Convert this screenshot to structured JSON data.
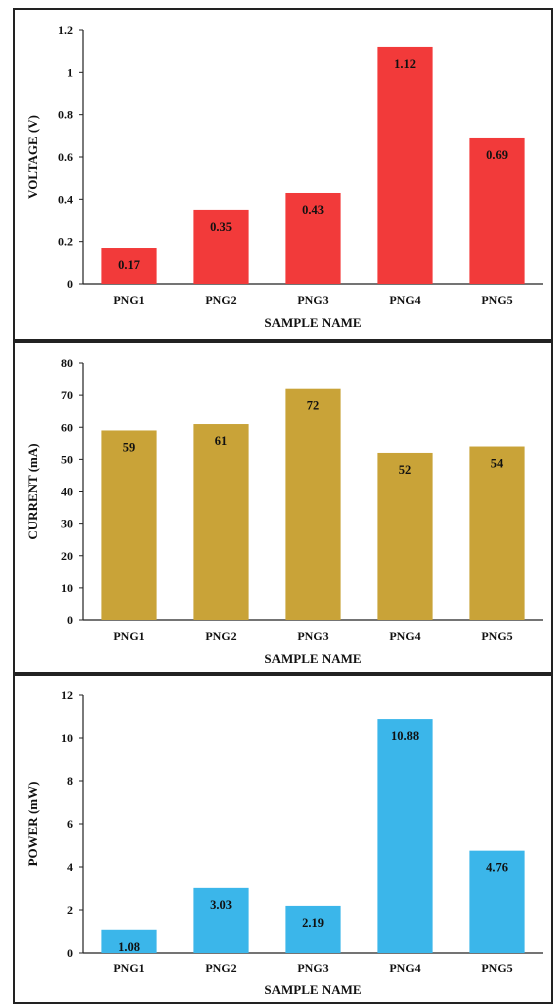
{
  "chart_data": [
    {
      "type": "bar",
      "categories": [
        "PNG1",
        "PNG2",
        "PNG3",
        "PNG4",
        "PNG5"
      ],
      "values": [
        0.17,
        0.35,
        0.43,
        1.12,
        0.69
      ],
      "value_labels": [
        "0.17",
        "0.35",
        "0.43",
        "1.12",
        "0.69"
      ],
      "yticks": [
        "0",
        "0.2",
        "0.4",
        "0.6",
        "0.8",
        "1",
        "1.2"
      ],
      "xlabel": "SAMPLE NAME",
      "ylabel": "VOLTAGE (V)",
      "ylim": [
        0,
        1.2
      ],
      "grid": false,
      "color": "#f23a3a"
    },
    {
      "type": "bar",
      "categories": [
        "PNG1",
        "PNG2",
        "PNG3",
        "PNG4",
        "PNG5"
      ],
      "values": [
        59,
        61,
        72,
        52,
        54
      ],
      "value_labels": [
        "59",
        "61",
        "72",
        "52",
        "54"
      ],
      "yticks": [
        "0",
        "10",
        "20",
        "30",
        "40",
        "50",
        "60",
        "70",
        "80"
      ],
      "xlabel": "SAMPLE NAME",
      "ylabel": "CURRENT (mA)",
      "ylim": [
        0,
        80
      ],
      "grid": false,
      "color": "#c9a338"
    },
    {
      "type": "bar",
      "categories": [
        "PNG1",
        "PNG2",
        "PNG3",
        "PNG4",
        "PNG5"
      ],
      "values": [
        1.08,
        3.03,
        2.19,
        10.88,
        4.76
      ],
      "value_labels": [
        "1.08",
        "3.03",
        "2.19",
        "10.88",
        "4.76"
      ],
      "yticks": [
        "0",
        "2",
        "4",
        "6",
        "8",
        "10",
        "12"
      ],
      "xlabel": "SAMPLE NAME",
      "ylabel": "POWER (mW)",
      "ylim": [
        0,
        12
      ],
      "grid": false,
      "color": "#3bb6ea"
    }
  ]
}
